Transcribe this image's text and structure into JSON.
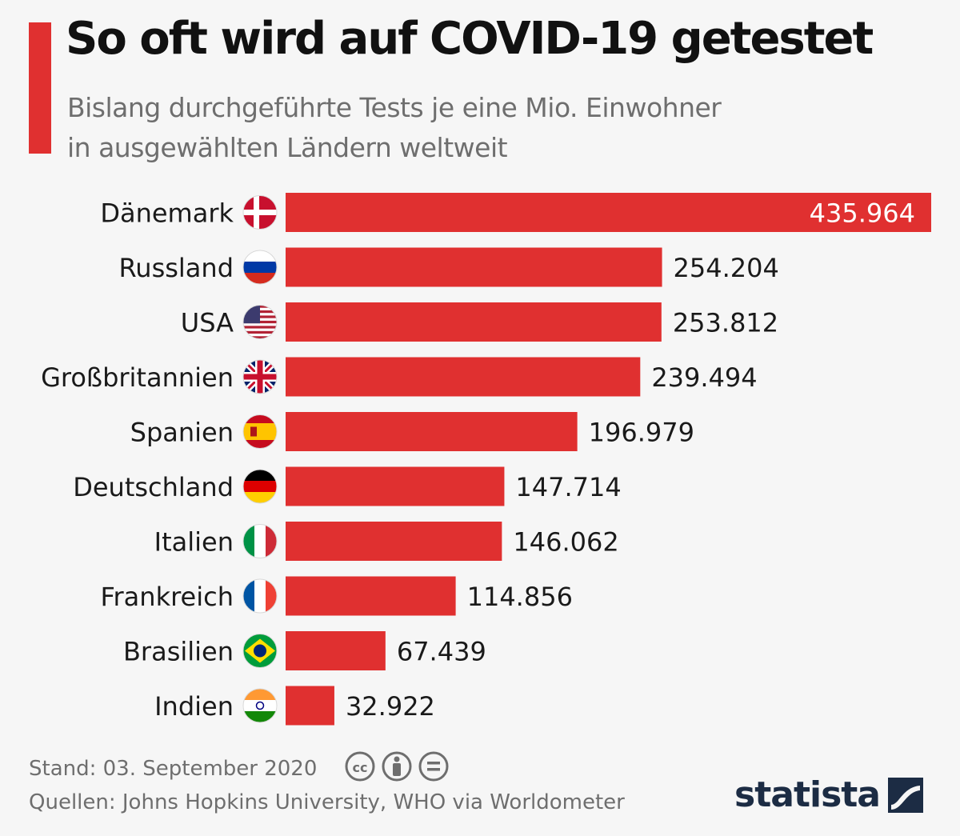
{
  "header": {
    "title": "So oft wird auf COVID-19 getestet",
    "subtitle_line1": "Bislang durchgeführte Tests je eine Mio. Einwohner",
    "subtitle_line2": "in ausgewählten Ländern weltweit"
  },
  "chart_data": {
    "type": "bar",
    "orientation": "horizontal",
    "categories": [
      "Dänemark",
      "Russland",
      "USA",
      "Großbritannien",
      "Spanien",
      "Deutschland",
      "Italien",
      "Frankreich",
      "Brasilien",
      "Indien"
    ],
    "values": [
      435964,
      254204,
      253812,
      239494,
      196979,
      147714,
      146062,
      114856,
      67439,
      32922
    ],
    "value_labels": [
      "435.964",
      "254.204",
      "253.812",
      "239.494",
      "196.979",
      "147.714",
      "146.062",
      "114.856",
      "67.439",
      "32.922"
    ],
    "flags": [
      "denmark-flag-icon",
      "russia-flag-icon",
      "usa-flag-icon",
      "uk-flag-icon",
      "spain-flag-icon",
      "germany-flag-icon",
      "italy-flag-icon",
      "france-flag-icon",
      "brazil-flag-icon",
      "india-flag-icon"
    ],
    "xlim": [
      0,
      435964
    ],
    "grid": false,
    "bar_color": "#e03030"
  },
  "footer": {
    "stand": "Stand: 03. September 2020",
    "source": "Quellen: Johns Hopkins University, WHO via Worldometer",
    "license_icons": [
      "cc-icon",
      "attribution-icon",
      "no-derivatives-icon"
    ],
    "brand": "statista"
  },
  "colors": {
    "accent": "#e03030",
    "brand_dark": "#1c2c44"
  }
}
